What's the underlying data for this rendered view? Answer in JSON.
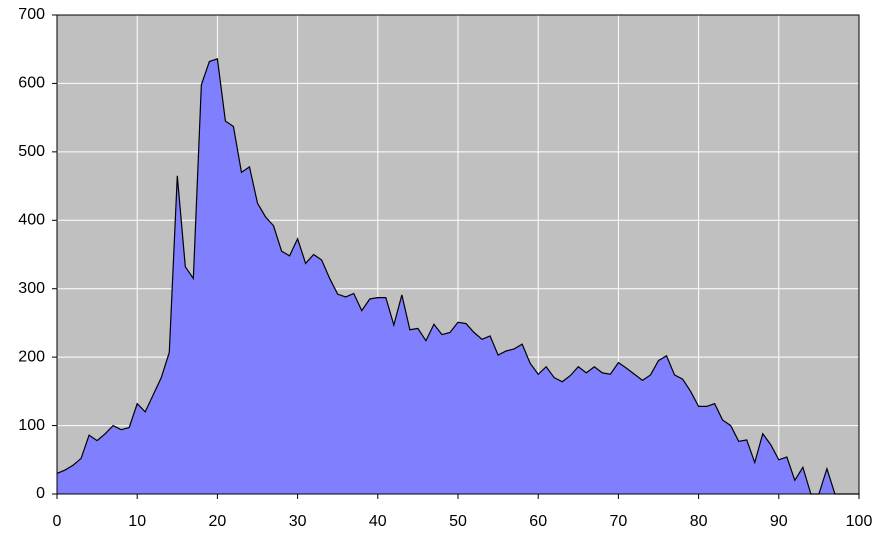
{
  "chart_data": {
    "type": "area",
    "x": [
      0,
      1,
      2,
      3,
      4,
      5,
      6,
      7,
      8,
      9,
      10,
      11,
      12,
      13,
      14,
      15,
      16,
      17,
      18,
      19,
      20,
      21,
      22,
      23,
      24,
      25,
      26,
      27,
      28,
      29,
      30,
      31,
      32,
      33,
      34,
      35,
      36,
      37,
      38,
      39,
      40,
      41,
      42,
      43,
      44,
      45,
      46,
      47,
      48,
      49,
      50,
      51,
      52,
      53,
      54,
      55,
      56,
      57,
      58,
      59,
      60,
      61,
      62,
      63,
      64,
      65,
      66,
      67,
      68,
      69,
      70,
      71,
      72,
      73,
      74,
      75,
      76,
      77,
      78,
      79,
      80,
      81,
      82,
      83,
      84,
      85,
      86,
      87,
      88,
      89,
      90,
      91,
      92,
      93,
      94,
      95,
      96,
      97,
      98,
      99,
      100
    ],
    "values": [
      30,
      35,
      42,
      52,
      86,
      78,
      88,
      100,
      94,
      97,
      132,
      120,
      145,
      170,
      207,
      465,
      332,
      315,
      598,
      632,
      636,
      545,
      537,
      470,
      478,
      425,
      405,
      392,
      355,
      348,
      373,
      337,
      350,
      342,
      315,
      292,
      288,
      293,
      268,
      285,
      287,
      287,
      247,
      291,
      240,
      242,
      224,
      248,
      233,
      236,
      251,
      249,
      236,
      226,
      231,
      203,
      209,
      212,
      219,
      191,
      175,
      186,
      170,
      164,
      173,
      186,
      177,
      186,
      177,
      175,
      192,
      184,
      175,
      166,
      174,
      195,
      202,
      174,
      168,
      150,
      128,
      128,
      132,
      108,
      100,
      77,
      79,
      46,
      88,
      72,
      50,
      54,
      20,
      39,
      0,
      0,
      37,
      0,
      0,
      0,
      0
    ],
    "color": "#8080ff",
    "line_color": "#000000",
    "background": "#c0c0c0",
    "xlim": [
      0,
      100
    ],
    "xticks": [
      0,
      10,
      20,
      30,
      40,
      50,
      60,
      70,
      80,
      90,
      100
    ],
    "ylim": [
      0,
      700
    ],
    "yticks": [
      0,
      100,
      200,
      300,
      400,
      500,
      600,
      700
    ],
    "grid": true
  }
}
